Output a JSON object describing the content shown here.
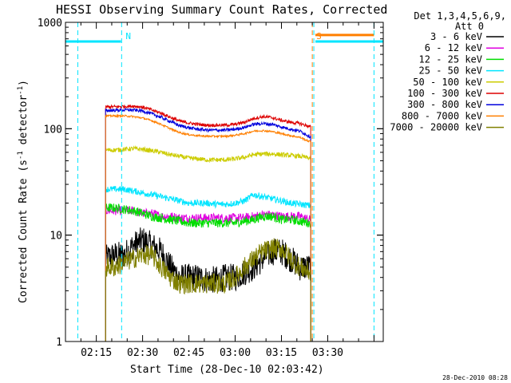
{
  "chart_data": {
    "type": "line",
    "title": "HESSI Observing Summary Count Rates, Corrected",
    "xlabel": "Start Time (28-Dec-10 02:03:42)",
    "ylabel_main": "Corrected Count Rate (s",
    "ylabel_sup1": "-1",
    "ylabel_mid": " detector",
    "ylabel_sup2": "-1",
    "ylabel_end": ")",
    "y_scale": "log",
    "ylim": [
      1,
      1000
    ],
    "xlim_minutes": [
      125,
      228
    ],
    "x_ticks": [
      {
        "minute": 135,
        "label": "02:15"
      },
      {
        "minute": 150,
        "label": "02:30"
      },
      {
        "minute": 165,
        "label": "02:45"
      },
      {
        "minute": 180,
        "label": "03:00"
      },
      {
        "minute": 195,
        "label": "03:15"
      },
      {
        "minute": 210,
        "label": "03:30"
      }
    ],
    "y_ticks": [
      {
        "value": 1,
        "label": "1"
      },
      {
        "value": 10,
        "label": "10"
      },
      {
        "value": 100,
        "label": "100"
      },
      {
        "value": 1000,
        "label": "1000"
      }
    ],
    "legend_header": [
      "Det 1,3,4,5,6,9,",
      "Att 0"
    ],
    "legend_position": "right",
    "footer_date": "28-Dec-2010 08:28",
    "markers": [
      {
        "label": "N",
        "minute": 143.2,
        "color": "#00e5ff"
      },
      {
        "label": "S",
        "minute": 205.0,
        "color": "#ff7f00"
      }
    ],
    "extra_vlines_minutes": [
      {
        "minute": 129,
        "color": "#00e5ff"
      },
      {
        "minute": 225,
        "color": "#00e5ff"
      },
      {
        "minute": 205.5,
        "color": "#00e5ff"
      }
    ],
    "night_bands": [
      {
        "x_start": 125,
        "x_end": 143,
        "value": 660,
        "color": "#00e5ff"
      },
      {
        "x_start": 206,
        "x_end": 228,
        "value": 660,
        "color": "#00e5ff"
      },
      {
        "x_start": 206,
        "x_end": 225,
        "value": 760,
        "color": "#ff7f00"
      }
    ],
    "series": [
      {
        "name": "3 - 6 keV",
        "color": "#000000",
        "noise": 0.3,
        "x": [
          138,
          141,
          144,
          147,
          150,
          153,
          156,
          159,
          162,
          165,
          168,
          171,
          174,
          177,
          180,
          183,
          186,
          189,
          192,
          195,
          198,
          201,
          204
        ],
        "y": [
          6,
          6.5,
          6.5,
          8,
          9,
          8,
          7,
          5,
          4,
          4,
          4,
          3.8,
          3.8,
          4,
          4,
          4.5,
          5,
          6,
          7,
          7,
          6,
          5,
          5
        ]
      },
      {
        "name": "6 - 12 keV",
        "color": "#e000e0",
        "noise": 0.1,
        "x": [
          138,
          141,
          144,
          147,
          150,
          153,
          156,
          159,
          162,
          165,
          168,
          171,
          174,
          177,
          180,
          183,
          186,
          189,
          192,
          195,
          198,
          201,
          204
        ],
        "y": [
          17,
          17,
          17,
          17,
          16,
          16,
          15,
          15,
          14.5,
          14.5,
          14.5,
          14.5,
          14.5,
          14.5,
          14.5,
          14.5,
          15,
          15.5,
          15.5,
          15,
          15,
          15,
          14
        ]
      },
      {
        "name": "12 - 25 keV",
        "color": "#00dd00",
        "noise": 0.1,
        "x": [
          138,
          141,
          144,
          147,
          150,
          153,
          156,
          159,
          162,
          165,
          168,
          171,
          174,
          177,
          180,
          183,
          186,
          189,
          192,
          195,
          198,
          201,
          204
        ],
        "y": [
          18,
          18,
          17.5,
          17,
          16,
          15,
          14.5,
          14,
          13.5,
          13,
          13,
          13,
          13,
          13,
          13,
          13.5,
          14,
          15,
          15,
          14,
          14,
          13.5,
          13
        ]
      },
      {
        "name": "25 - 50 keV",
        "color": "#00e5ff",
        "noise": 0.07,
        "x": [
          138,
          141,
          144,
          147,
          150,
          153,
          156,
          159,
          162,
          165,
          168,
          171,
          174,
          177,
          180,
          183,
          186,
          189,
          192,
          195,
          198,
          201,
          204
        ],
        "y": [
          27,
          27,
          27,
          26,
          25,
          24,
          23,
          22,
          21,
          20,
          20,
          20,
          19.5,
          19.5,
          20,
          21,
          24,
          23,
          22,
          21,
          20,
          19.5,
          19
        ]
      },
      {
        "name": "50 - 100 keV",
        "color": "#cccc00",
        "noise": 0.05,
        "x": [
          138,
          141,
          144,
          147,
          150,
          153,
          156,
          159,
          162,
          165,
          168,
          171,
          174,
          177,
          180,
          183,
          186,
          189,
          192,
          195,
          198,
          201,
          204
        ],
        "y": [
          63,
          63,
          64,
          65,
          64,
          62,
          60,
          57,
          55,
          53,
          52,
          51,
          51,
          51,
          52,
          54,
          57,
          58,
          58,
          57,
          56,
          55,
          53
        ]
      },
      {
        "name": "100 - 300 keV",
        "color": "#dd0000",
        "noise": 0.035,
        "x": [
          138,
          141,
          144,
          147,
          150,
          153,
          156,
          159,
          162,
          165,
          168,
          171,
          174,
          177,
          180,
          183,
          186,
          189,
          192,
          195,
          198,
          201,
          204
        ],
        "y": [
          160,
          161,
          162,
          163,
          160,
          150,
          140,
          128,
          118,
          113,
          110,
          108,
          108,
          108,
          110,
          115,
          125,
          130,
          127,
          120,
          115,
          112,
          105
        ]
      },
      {
        "name": "300 - 800 keV",
        "color": "#0000dd",
        "noise": 0.035,
        "x": [
          138,
          141,
          144,
          147,
          150,
          153,
          156,
          159,
          162,
          165,
          168,
          171,
          174,
          177,
          180,
          183,
          186,
          189,
          192,
          195,
          198,
          201,
          204
        ],
        "y": [
          148,
          149,
          150,
          150,
          147,
          138,
          128,
          117,
          107,
          102,
          99,
          97,
          97,
          97,
          99,
          103,
          110,
          112,
          110,
          104,
          99,
          95,
          85
        ]
      },
      {
        "name": "800 - 7000 keV",
        "color": "#ff7f00",
        "noise": 0.02,
        "x": [
          138,
          141,
          144,
          147,
          150,
          153,
          156,
          159,
          162,
          165,
          168,
          171,
          174,
          177,
          180,
          183,
          186,
          189,
          192,
          195,
          198,
          201,
          204
        ],
        "y": [
          132,
          132,
          132,
          130,
          126,
          119,
          110,
          100,
          92,
          88,
          86,
          85,
          85,
          85,
          87,
          90,
          95,
          96,
          94,
          90,
          86,
          83,
          76
        ]
      },
      {
        "name": "7000 - 20000 keV",
        "color": "#808000",
        "noise": 0.22,
        "x": [
          138,
          141,
          144,
          147,
          150,
          153,
          156,
          159,
          162,
          165,
          168,
          171,
          174,
          177,
          180,
          183,
          186,
          189,
          192,
          195,
          198,
          201,
          204
        ],
        "y": [
          5,
          5,
          5.5,
          6,
          6.5,
          6.5,
          5,
          4,
          3.5,
          3.5,
          3.5,
          3.5,
          3.5,
          3.5,
          4,
          5,
          6,
          7,
          7.5,
          7.5,
          6,
          5,
          4.5
        ]
      }
    ]
  }
}
